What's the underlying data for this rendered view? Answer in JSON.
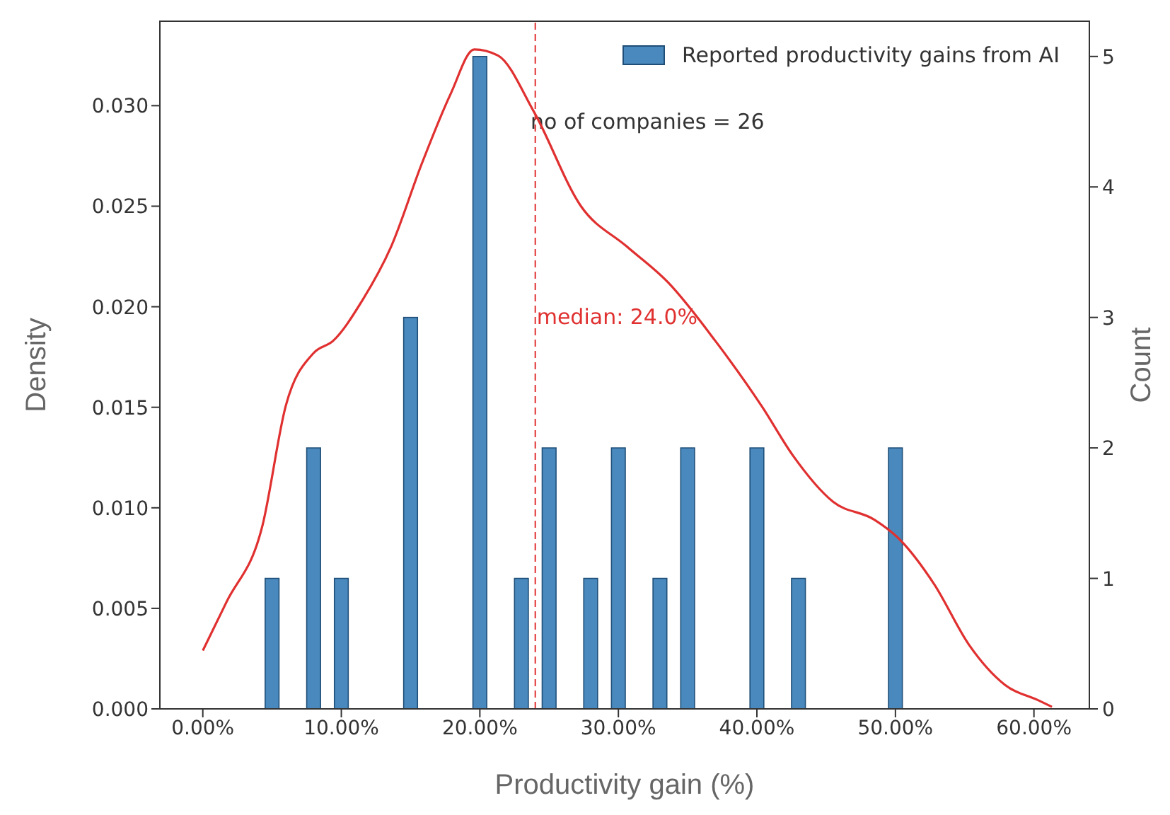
{
  "chart_data": {
    "type": "histogram",
    "xlabel": "Productivity gain (%)",
    "ylabel": "Density",
    "y2label": "Count",
    "xlim": [
      -3.1,
      64.0
    ],
    "xticks": [
      {
        "value": 0,
        "label": "0.00%"
      },
      {
        "value": 10,
        "label": "10.00%"
      },
      {
        "value": 20,
        "label": "20.00%"
      },
      {
        "value": 30,
        "label": "30.00%"
      },
      {
        "value": 40,
        "label": "40.00%"
      },
      {
        "value": 50,
        "label": "50.00%"
      },
      {
        "value": 60,
        "label": "60.00%"
      }
    ],
    "ylim": [
      0,
      0.0342
    ],
    "yticks": [
      {
        "value": 0,
        "label": "0.000"
      },
      {
        "value": 0.005,
        "label": "0.005"
      },
      {
        "value": 0.01,
        "label": "0.010"
      },
      {
        "value": 0.015,
        "label": "0.015"
      },
      {
        "value": 0.02,
        "label": "0.020"
      },
      {
        "value": 0.025,
        "label": "0.025"
      },
      {
        "value": 0.03,
        "label": "0.030"
      }
    ],
    "y2lim": [
      0,
      5.27
    ],
    "y2ticks": [
      0,
      1,
      2,
      3,
      4,
      5
    ],
    "series": [
      {
        "type": "histogram",
        "name": "Reported productivity gains from AI",
        "color": "#4a89bd",
        "axis": "y2",
        "bins": [
          4.5,
          5.5,
          6.5,
          7.5,
          8.5,
          9.5,
          10.5,
          11.5,
          12.5,
          13.5,
          14.5,
          15.5,
          16.5,
          17.5,
          18.5,
          19.5,
          20.5,
          21.5,
          22.5,
          23.5,
          24.5,
          25.5,
          26.5,
          27.5,
          28.5,
          29.5,
          30.5,
          31.5,
          32.5,
          33.5,
          34.5,
          35.5,
          36.5,
          37.5,
          38.5,
          39.5,
          40.5,
          41.5,
          42.5,
          43.5,
          44.5,
          45.5,
          46.5,
          47.5,
          48.5,
          49.5,
          50.5
        ],
        "values": [
          1,
          0,
          0,
          2,
          0,
          1,
          0,
          0,
          0,
          0,
          3,
          0,
          0,
          0,
          0,
          5,
          0,
          0,
          1,
          0,
          2,
          0,
          0,
          1,
          0,
          2,
          0,
          0,
          1,
          0,
          2,
          0,
          0,
          0,
          0,
          2,
          0,
          0,
          1,
          0,
          0,
          0,
          0,
          0,
          0,
          2
        ]
      },
      {
        "type": "line",
        "color": "#e03030",
        "x": [
          0,
          1.7,
          4.3,
          6.0,
          8.0,
          9.4,
          11.5,
          13.6,
          15.8,
          17.9,
          19.6,
          21.3,
          23.9,
          27.3,
          30.6,
          33.6,
          37.0,
          40.4,
          42.6,
          45.5,
          48.5,
          50.2,
          52.8,
          55.3,
          57.9,
          60.4,
          61.3
        ],
        "values": [
          0.0029,
          0.0053,
          0.0091,
          0.0151,
          0.0177,
          0.0183,
          0.0203,
          0.023,
          0.0271,
          0.0306,
          0.0328,
          0.0325,
          0.0297,
          0.025,
          0.023,
          0.0212,
          0.0183,
          0.015,
          0.0126,
          0.0103,
          0.0094,
          0.0085,
          0.0062,
          0.0032,
          0.0012,
          0.0004,
          0.0001
        ]
      }
    ],
    "ref_lines": [
      {
        "axis": "x",
        "value": 24,
        "label": "median: 24.0%",
        "color": "#e03030",
        "line_style": "dashed"
      }
    ],
    "annotations": [
      "no of companies = 26"
    ],
    "legend": "top right"
  }
}
